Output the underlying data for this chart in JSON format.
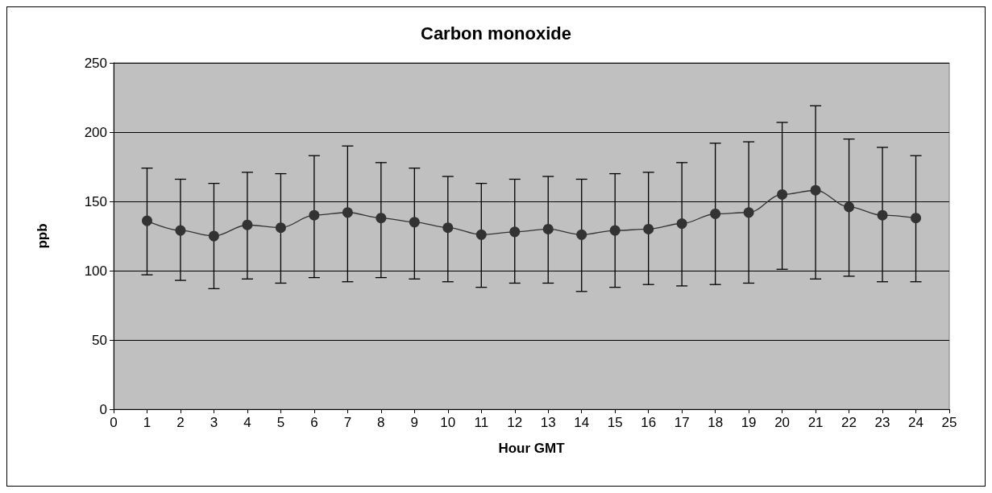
{
  "chart_data": {
    "type": "line",
    "title": "Carbon monoxide",
    "xlabel": "Hour GMT",
    "ylabel": "ppb",
    "x": [
      1,
      2,
      3,
      4,
      5,
      6,
      7,
      8,
      9,
      10,
      11,
      12,
      13,
      14,
      15,
      16,
      17,
      18,
      19,
      20,
      21,
      22,
      23,
      24
    ],
    "series": [
      {
        "color": "#333333",
        "values": [
          136,
          129,
          125,
          133,
          131,
          140,
          142,
          138,
          135,
          131,
          126,
          128,
          130,
          126,
          129,
          130,
          134,
          141,
          142,
          155,
          158,
          146,
          140,
          138
        ],
        "errors": [
          [
            97,
            174
          ],
          [
            93,
            166
          ],
          [
            87,
            163
          ],
          [
            94,
            171
          ],
          [
            91,
            170
          ],
          [
            95,
            183
          ],
          [
            92,
            190
          ],
          [
            95,
            178
          ],
          [
            94,
            174
          ],
          [
            92,
            168
          ],
          [
            88,
            163
          ],
          [
            91,
            166
          ],
          [
            91,
            168
          ],
          [
            85,
            166
          ],
          [
            88,
            170
          ],
          [
            90,
            171
          ],
          [
            89,
            178
          ],
          [
            90,
            192
          ],
          [
            91,
            193
          ],
          [
            101,
            207
          ],
          [
            94,
            219
          ],
          [
            96,
            195
          ],
          [
            92,
            189
          ],
          [
            92,
            183
          ]
        ]
      }
    ],
    "xlim": [
      0,
      25
    ],
    "xticks": [
      0,
      1,
      2,
      3,
      4,
      5,
      6,
      7,
      8,
      9,
      10,
      11,
      12,
      13,
      14,
      15,
      16,
      17,
      18,
      19,
      20,
      21,
      22,
      23,
      24,
      25
    ],
    "ylim": [
      0,
      250
    ],
    "yticks": [
      0,
      50,
      100,
      150,
      200,
      250
    ],
    "grid": "y",
    "marker": "circle",
    "line_style": "solid"
  }
}
